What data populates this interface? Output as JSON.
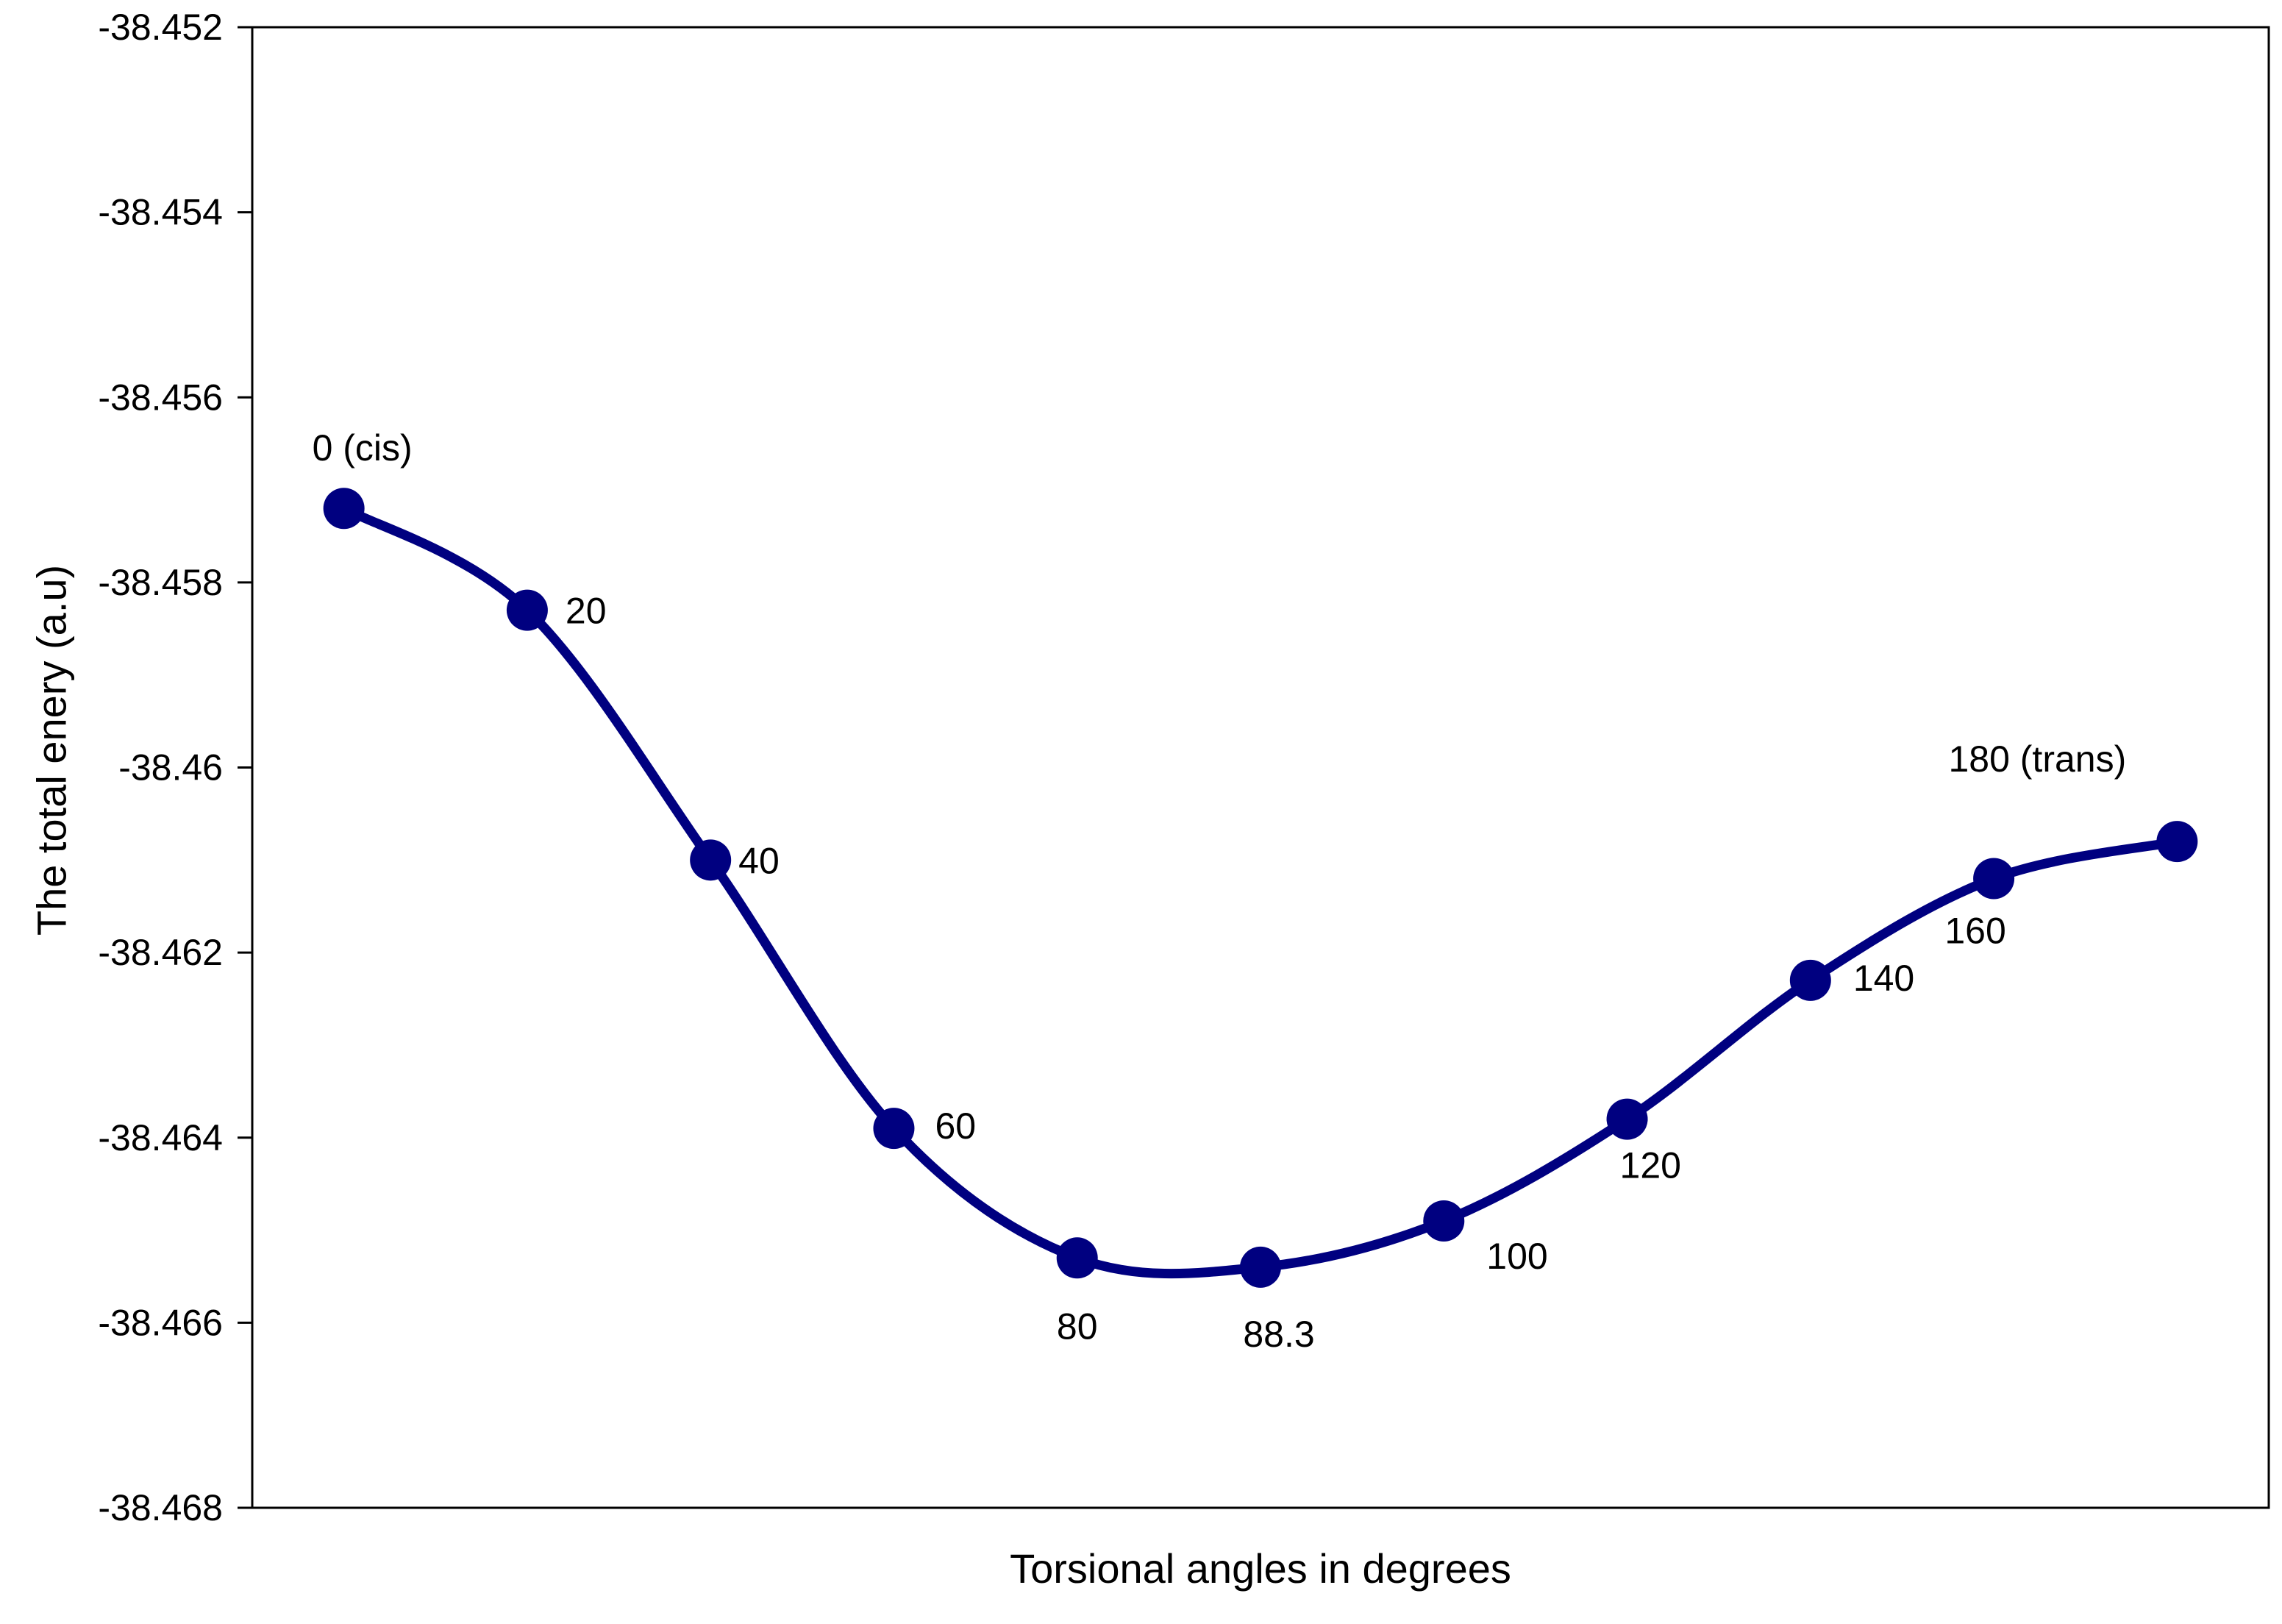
{
  "chart_data": {
    "type": "line",
    "title": "",
    "xlabel": "Torsional angles in degrees",
    "ylabel": "The total enery (a.u)",
    "categories": [
      "0 (cis)",
      "20",
      "40",
      "60",
      "80",
      "88.3",
      "100",
      "120",
      "140",
      "160",
      "180 (trans)"
    ],
    "x_values_degrees": [
      0,
      20,
      40,
      60,
      80,
      88.3,
      100,
      120,
      140,
      160,
      180
    ],
    "values": [
      -38.4572,
      -38.4583,
      -38.461,
      -38.4639,
      -38.4653,
      -38.4654,
      -38.4649,
      -38.4638,
      -38.4623,
      -38.4612,
      -38.4608
    ],
    "point_labels": [
      "0 (cis)",
      "20",
      "40",
      "60",
      "80",
      "88.3",
      "100",
      "120",
      "140",
      "160",
      "180 (trans)"
    ],
    "y_ticks": [
      "-38.452",
      "-38.454",
      "-38.456",
      "-38.458",
      "-38.46",
      "-38.462",
      "-38.464",
      "-38.466",
      "-38.468"
    ],
    "ylim": [
      -38.468,
      -38.452
    ],
    "grid": false,
    "legend": "none",
    "smooth": true,
    "marker": "circle",
    "line_color": "#000080",
    "axis_color": "#000000",
    "background_color": "#ffffff"
  }
}
